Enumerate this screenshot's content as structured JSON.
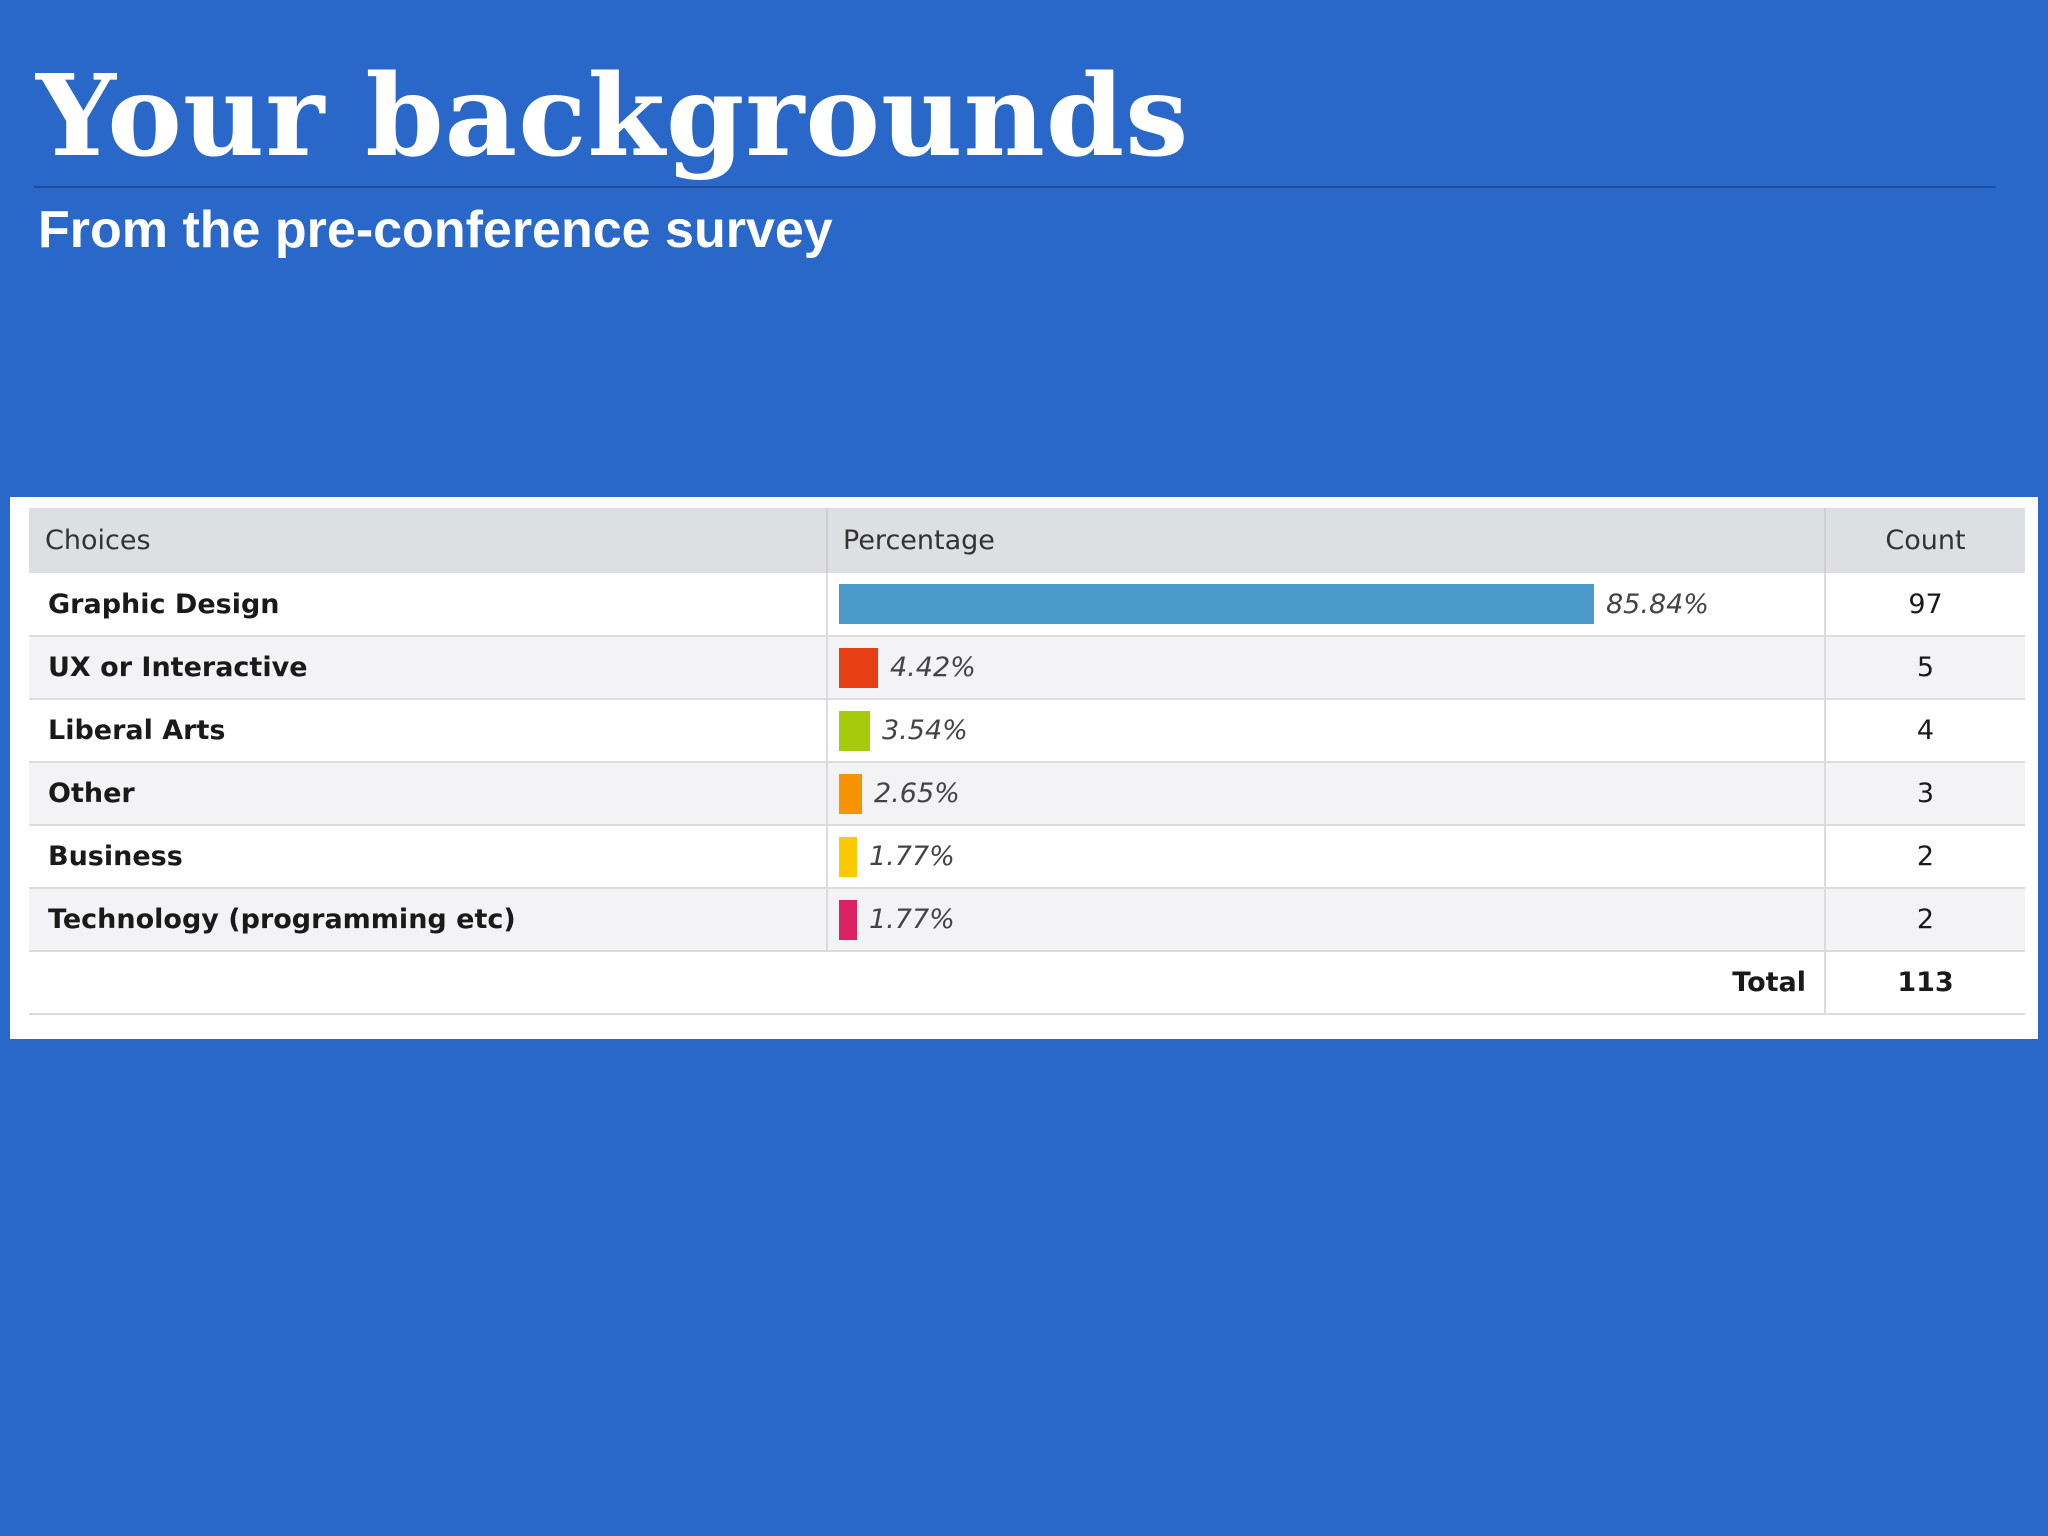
{
  "slide": {
    "title": "Your backgrounds",
    "subtitle": "From the pre-conference survey"
  },
  "table": {
    "headers": {
      "choice": "Choices",
      "percentage": "Percentage",
      "count": "Count"
    },
    "total_label": "Total",
    "total_value": "113"
  },
  "chart_data": {
    "type": "table",
    "columns": [
      "Choices",
      "Percentage",
      "Count"
    ],
    "bar_max_percent": 100,
    "rows": [
      {
        "choice": "Graphic Design",
        "percent": 85.84,
        "percent_label": "85.84%",
        "count": "97",
        "color": "#4a9acb"
      },
      {
        "choice": "UX or Interactive",
        "percent": 4.42,
        "percent_label": "4.42%",
        "count": "5",
        "color": "#e53f13"
      },
      {
        "choice": "Liberal Arts",
        "percent": 3.54,
        "percent_label": "3.54%",
        "count": "4",
        "color": "#a7cb0c"
      },
      {
        "choice": "Other",
        "percent": 2.65,
        "percent_label": "2.65%",
        "count": "3",
        "color": "#f59300"
      },
      {
        "choice": "Business",
        "percent": 1.77,
        "percent_label": "1.77%",
        "count": "2",
        "color": "#fbc900"
      },
      {
        "choice": "Technology (programming etc)",
        "percent": 1.77,
        "percent_label": "1.77%",
        "count": "2",
        "color": "#dd2264"
      }
    ]
  }
}
